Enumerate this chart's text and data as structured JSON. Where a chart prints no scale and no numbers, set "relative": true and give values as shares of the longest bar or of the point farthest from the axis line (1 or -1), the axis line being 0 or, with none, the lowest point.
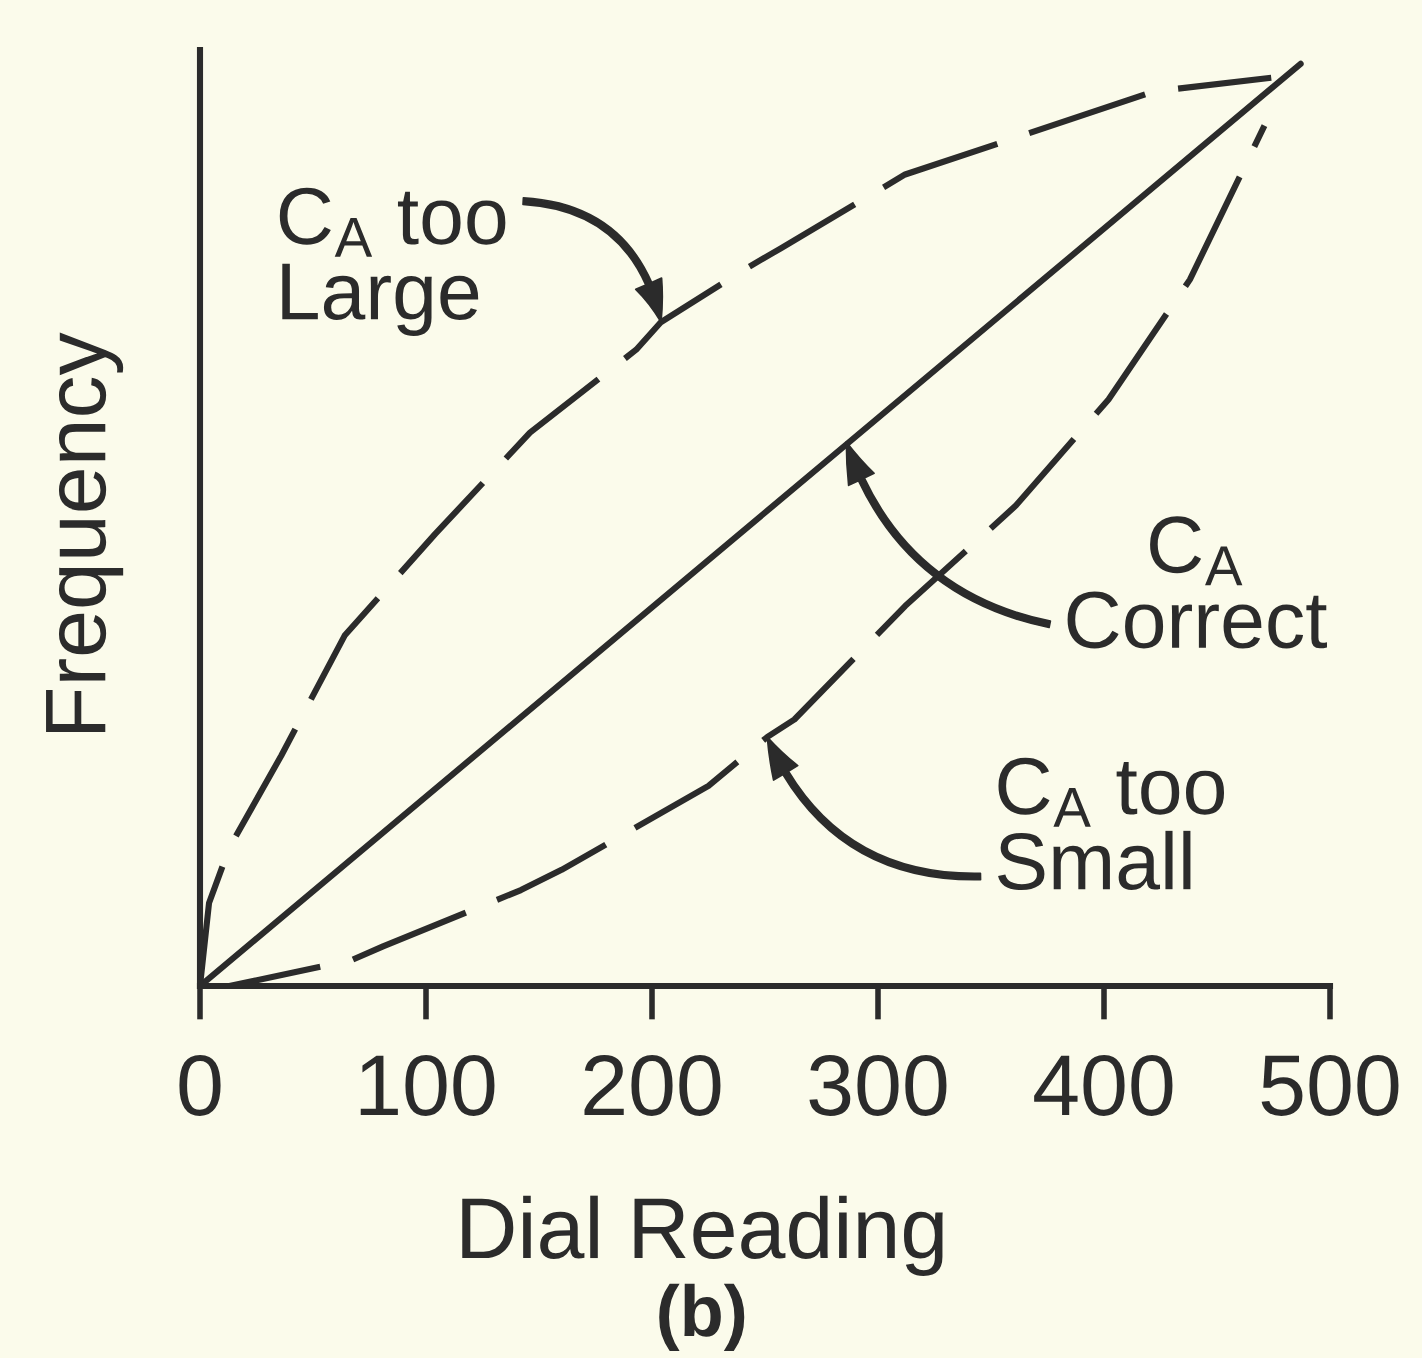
{
  "chart_data": {
    "type": "line",
    "xlabel": "Dial Reading",
    "ylabel": "Frequency",
    "relative": true,
    "xlim": [
      0,
      500
    ],
    "xticks": [
      0,
      100,
      200,
      300,
      400,
      500
    ],
    "tick_labels": "x",
    "grid": false,
    "series": [
      {
        "color": "#2b2b2b",
        "line_style": "dashed",
        "x": [
          0,
          4,
          13,
          36,
          64,
          104,
          146,
          193,
          204,
          243,
          257,
          312,
          361,
          422,
          474
        ],
        "values": [
          0,
          0.09,
          0.15,
          0.25,
          0.38,
          0.49,
          0.6,
          0.69,
          0.72,
          0.78,
          0.8,
          0.88,
          0.92,
          0.97,
          0.985
        ]
      },
      {
        "color": "#2b2b2b",
        "line_style": "solid",
        "x": [
          0,
          487
        ],
        "values": [
          0,
          1
        ]
      },
      {
        "color": "#2b2b2b",
        "line_style": "dashed",
        "x": [
          0,
          13,
          67,
          81,
          142,
          160,
          225,
          251,
          263,
          312,
          361,
          402,
          438,
          471
        ],
        "values": [
          0,
          0,
          0.028,
          0.043,
          0.104,
          0.126,
          0.217,
          0.27,
          0.289,
          0.412,
          0.521,
          0.636,
          0.766,
          0.933
        ]
      }
    ],
    "annotations": [
      {
        "text": "C$_{A}$ too\nLarge",
        "x": 204,
        "y": 0.72
      },
      {
        "text": "C$_{A}$\nCorrect",
        "x": 286,
        "y": 0.59
      },
      {
        "text": "C$_{A}$ too\nSmall",
        "x": 251,
        "y": 0.27
      },
      "(b)"
    ]
  }
}
